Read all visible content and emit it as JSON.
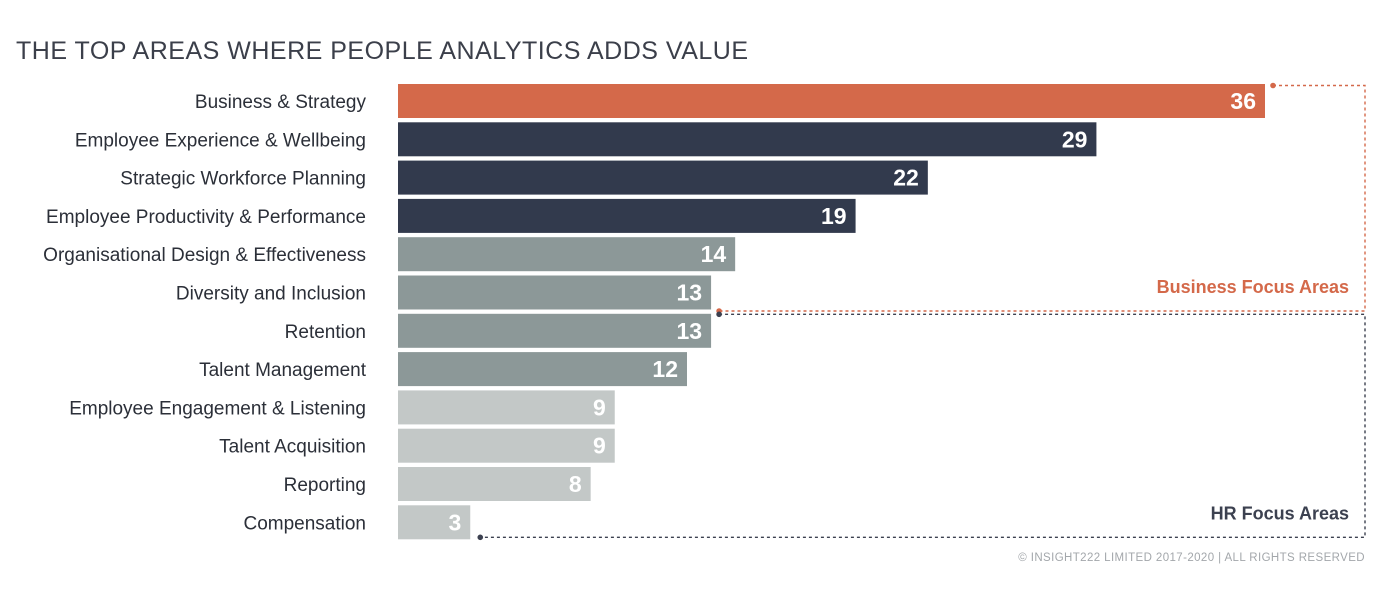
{
  "chart_data": {
    "type": "bar",
    "orientation": "horizontal",
    "title": "THE TOP AREAS WHERE PEOPLE ANALYTICS ADDS VALUE",
    "categories": [
      "Business & Strategy",
      "Employee Experience & Wellbeing",
      "Strategic Workforce Planning",
      "Employee Productivity & Performance",
      "Organisational Design & Effectiveness",
      "Diversity and Inclusion",
      "Retention",
      "Talent Management",
      "Employee Engagement & Listening",
      "Talent Acquisition",
      "Reporting",
      "Compensation"
    ],
    "values": [
      36,
      29,
      22,
      19,
      14,
      13,
      13,
      12,
      9,
      9,
      8,
      3
    ],
    "bar_colors": [
      "#d4694a",
      "#323a4d",
      "#323a4d",
      "#323a4d",
      "#8c9898",
      "#8c9898",
      "#8c9898",
      "#8c9898",
      "#c3c8c7",
      "#c3c8c7",
      "#c3c8c7",
      "#c3c8c7"
    ],
    "xlim": [
      0,
      36
    ],
    "grid": false,
    "groups": [
      {
        "label": "Business Focus Areas",
        "color": "#d4694a",
        "first": 0,
        "last": 5
      },
      {
        "label": "HR Focus Areas",
        "color": "#3c4150",
        "first": 6,
        "last": 11
      }
    ]
  },
  "footer": {
    "copyright": "© INSIGHT222 LIMITED 2017-2020 | ALL RIGHTS RESERVED"
  }
}
